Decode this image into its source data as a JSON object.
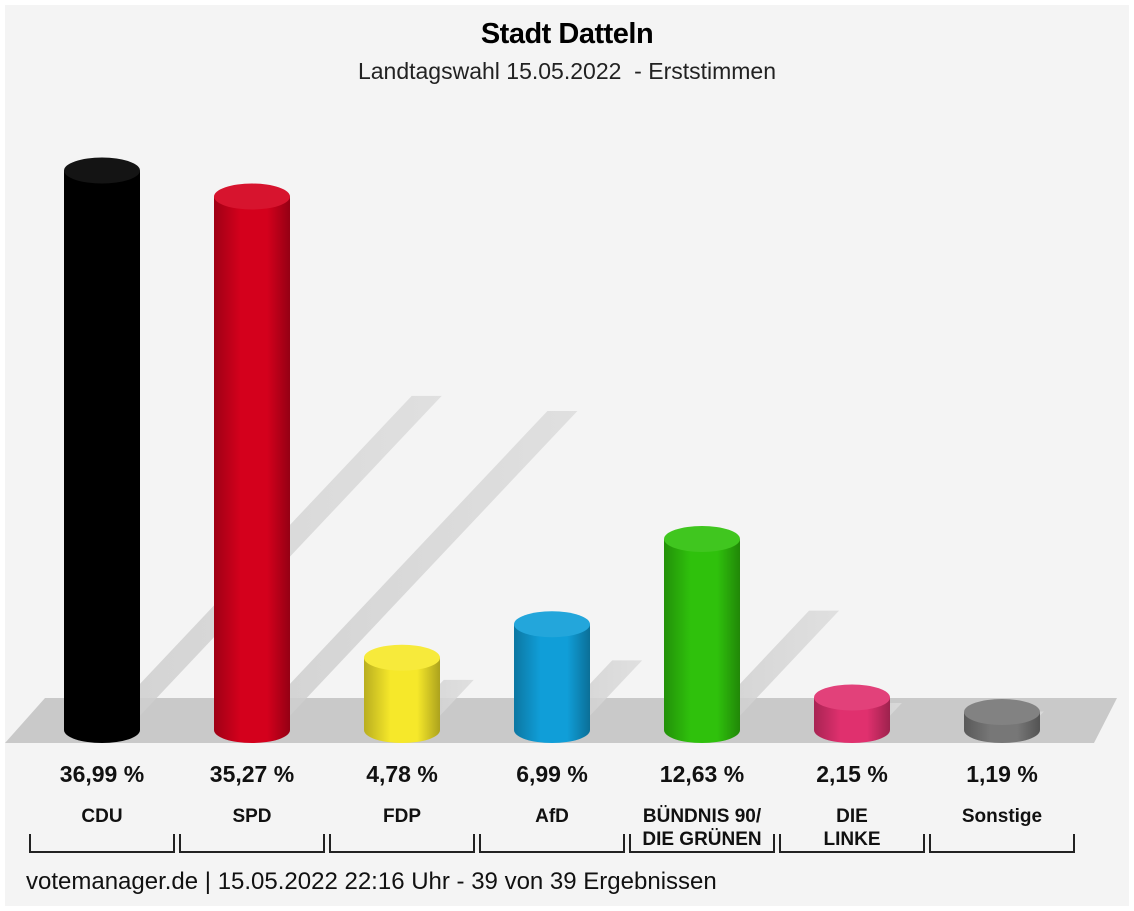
{
  "chart_data": {
    "type": "bar",
    "title": "Stadt Datteln",
    "subtitle": "Landtagswahl 15.05.2022  - Erststimmen",
    "categories": [
      "CDU",
      "SPD",
      "FDP",
      "AfD",
      "BÜNDNIS 90/\nDIE GRÜNEN",
      "DIE\nLINKE",
      "Sonstige"
    ],
    "value_labels": [
      "36,99 %",
      "35,27 %",
      "4,78 %",
      "6,99 %",
      "12,63 %",
      "2,15 %",
      "1,19 %"
    ],
    "values": [
      36.99,
      35.27,
      4.78,
      6.99,
      12.63,
      2.15,
      1.19
    ],
    "colors": [
      "#000000",
      "#d4001c",
      "#f6e82a",
      "#109ed8",
      "#2fc10c",
      "#e0306e",
      "#777777"
    ],
    "ylim": [
      0,
      40
    ],
    "grid": false,
    "legend": "none"
  },
  "footer": {
    "text": "votemanager.de | 15.05.2022 22:16 Uhr - 39 von 39 Ergebnissen"
  }
}
